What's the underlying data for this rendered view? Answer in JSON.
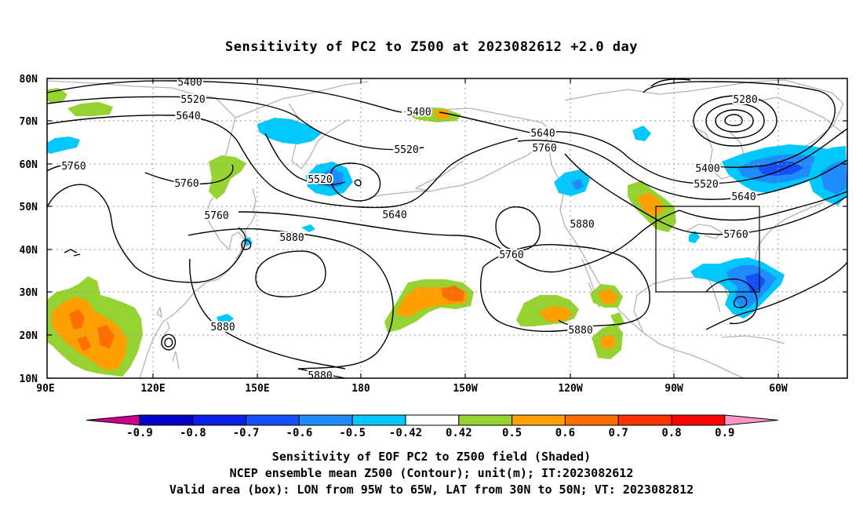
{
  "title": "Sensitivity of PC2 to Z500 at 2023082612 +2.0 day",
  "map": {
    "lat_labels": [
      "80N",
      "70N",
      "60N",
      "50N",
      "40N",
      "30N",
      "20N",
      "10N"
    ],
    "lon_labels": [
      "90E",
      "120E",
      "150E",
      "180",
      "150W",
      "120W",
      "90W",
      "60W"
    ]
  },
  "contour_labels": [
    {
      "text": "5400",
      "name": "contour-label-5400-west"
    },
    {
      "text": "5520",
      "name": "contour-label-5520-west"
    },
    {
      "text": "5640",
      "name": "contour-label-5640-west"
    },
    {
      "text": "5760",
      "name": "contour-label-5760-far-west"
    },
    {
      "text": "5760",
      "name": "contour-label-5760-west"
    },
    {
      "text": "5760",
      "name": "contour-label-5760-asia"
    },
    {
      "text": "5880",
      "name": "contour-label-5880-pacific"
    },
    {
      "text": "5880",
      "name": "contour-label-5880-south"
    },
    {
      "text": "5880",
      "name": "contour-label-5880-bottom"
    },
    {
      "text": "5400",
      "name": "contour-label-5400-pacific"
    },
    {
      "text": "5520",
      "name": "contour-label-5520-pacific"
    },
    {
      "text": "5520",
      "name": "contour-label-5520-center"
    },
    {
      "text": "5640",
      "name": "contour-label-5640-center"
    },
    {
      "text": "5640",
      "name": "contour-label-5640-northpac"
    },
    {
      "text": "5760",
      "name": "contour-label-5760-northpac"
    },
    {
      "text": "5760",
      "name": "contour-label-5760-high"
    },
    {
      "text": "5880",
      "name": "contour-label-5880-east"
    },
    {
      "text": "5880",
      "name": "contour-label-5880-mexico"
    },
    {
      "text": "5280",
      "name": "contour-label-5280-low"
    },
    {
      "text": "5400",
      "name": "contour-label-5400-east"
    },
    {
      "text": "5520",
      "name": "contour-label-5520-east"
    },
    {
      "text": "5640",
      "name": "contour-label-5640-east"
    },
    {
      "text": "5760",
      "name": "contour-label-5760-east"
    }
  ],
  "colorbar": {
    "labels": [
      "-0.9",
      "-0.8",
      "-0.7",
      "-0.6",
      "-0.5",
      "-0.42",
      "0.42",
      "0.5",
      "0.6",
      "0.7",
      "0.8",
      "0.9"
    ],
    "colors": [
      "#c8008c",
      "#0000c8",
      "#0a1ee6",
      "#1450ff",
      "#1e8cff",
      "#00c8ff",
      "#ffffff",
      "#96d232",
      "#ffa000",
      "#ff6e00",
      "#ff3200",
      "#ff0000",
      "#ff96c8"
    ]
  },
  "footer": {
    "line1": "Sensitivity of EOF PC2 to Z500 field (Shaded)",
    "line2": "NCEP ensemble mean Z500 (Contour); unit(m); IT:2023082612",
    "line3": "Valid area (box): LON from 95W to 65W, LAT from 30N to 50N; VT: 2023082812"
  }
}
